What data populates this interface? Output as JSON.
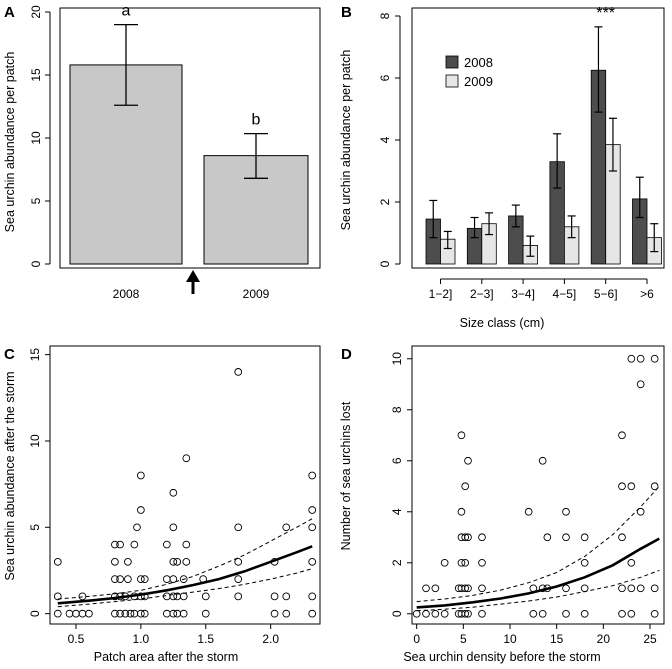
{
  "chart_data": [
    {
      "panel": "A",
      "type": "bar",
      "categories": [
        "2008",
        "2009"
      ],
      "values": [
        15.8,
        8.6
      ],
      "error_low": [
        12.6,
        6.8
      ],
      "error_high": [
        19.0,
        10.35
      ],
      "significance": [
        "a",
        "b"
      ],
      "ylabel": "Sea urchin abundance per patch",
      "ylim": [
        0,
        20
      ],
      "yticks": [
        0,
        5,
        10,
        15,
        20
      ],
      "colors": {
        "bar": "#c8c8c8"
      },
      "annotation": "arrow between 2008 and 2009 marking the storm event"
    },
    {
      "panel": "B",
      "type": "bar",
      "categories": [
        "1−2]",
        "2−3]",
        "3−4]",
        "4−5]",
        "5−6]",
        ">6"
      ],
      "series": [
        {
          "name": "2008",
          "values": [
            1.45,
            1.15,
            1.55,
            3.3,
            6.25,
            2.1
          ],
          "error_low": [
            0.85,
            0.85,
            1.2,
            2.45,
            4.9,
            1.5
          ],
          "error_high": [
            2.05,
            1.5,
            1.9,
            4.2,
            7.65,
            2.8
          ],
          "color": "#4d4d4d"
        },
        {
          "name": "2009",
          "values": [
            0.8,
            1.3,
            0.6,
            1.2,
            3.85,
            0.85
          ],
          "error_low": [
            0.5,
            0.95,
            0.25,
            0.85,
            3.0,
            0.4
          ],
          "error_high": [
            1.05,
            1.65,
            0.9,
            1.55,
            4.7,
            1.3
          ],
          "color": "#e6e6e6"
        }
      ],
      "significance_label": "***",
      "significance_index": 4,
      "xlabel": "Size class (cm)",
      "ylabel": "Sea urchin abundance per patch",
      "ylim": [
        0,
        8
      ],
      "yticks": [
        0,
        2,
        4,
        6,
        8
      ],
      "legend": "top-left"
    },
    {
      "panel": "C",
      "type": "scatter",
      "xlabel": "Patch area after the storm",
      "ylabel": "Sea urchin abundance after the storm",
      "xlim": [
        0.3,
        2.38
      ],
      "ylim": [
        -0.6,
        15.5
      ],
      "xticks": [
        0.5,
        1.0,
        1.5,
        2.0
      ],
      "xtick_labels": [
        "0.5",
        "1.0",
        "1.5",
        "2.0"
      ],
      "yticks": [
        0,
        5,
        10,
        15
      ],
      "points": [
        [
          0.36,
          3
        ],
        [
          0.36,
          1
        ],
        [
          0.36,
          0
        ],
        [
          0.45,
          0
        ],
        [
          0.5,
          0
        ],
        [
          0.55,
          1
        ],
        [
          0.55,
          0
        ],
        [
          0.6,
          0
        ],
        [
          0.8,
          4
        ],
        [
          0.8,
          3
        ],
        [
          0.8,
          2
        ],
        [
          0.8,
          1
        ],
        [
          0.8,
          0
        ],
        [
          0.84,
          4
        ],
        [
          0.84,
          2
        ],
        [
          0.84,
          1
        ],
        [
          0.84,
          0
        ],
        [
          0.88,
          0
        ],
        [
          0.88,
          1
        ],
        [
          0.9,
          3
        ],
        [
          0.9,
          2
        ],
        [
          0.92,
          0
        ],
        [
          0.95,
          4
        ],
        [
          0.95,
          1
        ],
        [
          0.95,
          0
        ],
        [
          0.97,
          5
        ],
        [
          1.0,
          8
        ],
        [
          1.0,
          6
        ],
        [
          1.0,
          2
        ],
        [
          1.0,
          1
        ],
        [
          1.0,
          0
        ],
        [
          1.03,
          2
        ],
        [
          1.03,
          1
        ],
        [
          1.03,
          0
        ],
        [
          1.2,
          4
        ],
        [
          1.2,
          2
        ],
        [
          1.2,
          1
        ],
        [
          1.2,
          0
        ],
        [
          1.25,
          7
        ],
        [
          1.25,
          5
        ],
        [
          1.25,
          3
        ],
        [
          1.25,
          2
        ],
        [
          1.25,
          1
        ],
        [
          1.25,
          0
        ],
        [
          1.28,
          3
        ],
        [
          1.28,
          1
        ],
        [
          1.28,
          0
        ],
        [
          1.33,
          2
        ],
        [
          1.33,
          1
        ],
        [
          1.33,
          0
        ],
        [
          1.35,
          9
        ],
        [
          1.35,
          4
        ],
        [
          1.35,
          3
        ],
        [
          1.48,
          2
        ],
        [
          1.5,
          1
        ],
        [
          1.5,
          0
        ],
        [
          1.75,
          14
        ],
        [
          1.75,
          5
        ],
        [
          1.75,
          3
        ],
        [
          1.75,
          2
        ],
        [
          1.75,
          1
        ],
        [
          2.03,
          3
        ],
        [
          2.03,
          1
        ],
        [
          2.03,
          0
        ],
        [
          2.12,
          5
        ],
        [
          2.12,
          1
        ],
        [
          2.12,
          0
        ],
        [
          2.32,
          8
        ],
        [
          2.32,
          6
        ],
        [
          2.32,
          5
        ],
        [
          2.32,
          3
        ],
        [
          2.32,
          1
        ],
        [
          2.32,
          0
        ]
      ],
      "fit": {
        "x": [
          0.36,
          0.6,
          0.8,
          1.0,
          1.2,
          1.4,
          1.6,
          1.8,
          2.0,
          2.2,
          2.32
        ],
        "y": [
          0.6,
          0.75,
          0.9,
          1.1,
          1.35,
          1.65,
          2.0,
          2.45,
          3.0,
          3.55,
          3.9
        ]
      },
      "fit_lower": {
        "x": [
          0.36,
          0.6,
          0.8,
          1.0,
          1.2,
          1.4,
          1.6,
          1.8,
          2.0,
          2.2,
          2.32
        ],
        "y": [
          0.4,
          0.55,
          0.7,
          0.85,
          1.05,
          1.25,
          1.45,
          1.7,
          2.0,
          2.35,
          2.6
        ]
      },
      "fit_upper": {
        "x": [
          0.36,
          0.6,
          0.8,
          1.0,
          1.2,
          1.4,
          1.6,
          1.8,
          2.0,
          2.2,
          2.32
        ],
        "y": [
          0.85,
          1.0,
          1.15,
          1.35,
          1.7,
          2.15,
          2.75,
          3.4,
          4.2,
          5.0,
          5.5
        ]
      }
    },
    {
      "panel": "D",
      "type": "scatter",
      "xlabel": "Sea urchin density before the storm",
      "ylabel": "Number of sea urchins lost",
      "xlim": [
        -0.5,
        26.5
      ],
      "ylim": [
        -0.4,
        10.5
      ],
      "xticks": [
        0,
        5,
        10,
        15,
        20,
        25
      ],
      "yticks": [
        0,
        2,
        4,
        6,
        8,
        10
      ],
      "points": [
        [
          0,
          0
        ],
        [
          1,
          0
        ],
        [
          1,
          1
        ],
        [
          2,
          1
        ],
        [
          2,
          0
        ],
        [
          3,
          0
        ],
        [
          3,
          2
        ],
        [
          4.5,
          1
        ],
        [
          4.5,
          0
        ],
        [
          4.8,
          7
        ],
        [
          4.8,
          4
        ],
        [
          4.8,
          3
        ],
        [
          4.8,
          2
        ],
        [
          4.8,
          1
        ],
        [
          4.8,
          0
        ],
        [
          5.2,
          5
        ],
        [
          5.2,
          3
        ],
        [
          5.2,
          2
        ],
        [
          5.2,
          1
        ],
        [
          5.2,
          0
        ],
        [
          5.5,
          6
        ],
        [
          5.5,
          3
        ],
        [
          5.5,
          1
        ],
        [
          5.5,
          0
        ],
        [
          7,
          3
        ],
        [
          7,
          2
        ],
        [
          7,
          1
        ],
        [
          7,
          0
        ],
        [
          12,
          4
        ],
        [
          12.5,
          1
        ],
        [
          12.5,
          0
        ],
        [
          13.5,
          6
        ],
        [
          13.5,
          1
        ],
        [
          13.5,
          0
        ],
        [
          14,
          3
        ],
        [
          14,
          1
        ],
        [
          16,
          4
        ],
        [
          16,
          3
        ],
        [
          16,
          1
        ],
        [
          16,
          0
        ],
        [
          18,
          3
        ],
        [
          18,
          2
        ],
        [
          18,
          1
        ],
        [
          18,
          0
        ],
        [
          22,
          7
        ],
        [
          22,
          5
        ],
        [
          22,
          3
        ],
        [
          22,
          1
        ],
        [
          22,
          0
        ],
        [
          23,
          10
        ],
        [
          23,
          5
        ],
        [
          23,
          2
        ],
        [
          23,
          1
        ],
        [
          23,
          0
        ],
        [
          24,
          10
        ],
        [
          24,
          9
        ],
        [
          24,
          4
        ],
        [
          24,
          1
        ],
        [
          25.5,
          10
        ],
        [
          25.5,
          5
        ],
        [
          25.5,
          1
        ],
        [
          25.5,
          0
        ]
      ],
      "fit": {
        "x": [
          0,
          3,
          6,
          9,
          12,
          15,
          18,
          21,
          24,
          26
        ],
        "y": [
          0.25,
          0.33,
          0.45,
          0.6,
          0.8,
          1.07,
          1.43,
          1.9,
          2.55,
          2.95
        ]
      },
      "fit_lower": {
        "x": [
          0,
          3,
          6,
          9,
          12,
          15,
          18,
          21,
          24,
          26
        ],
        "y": [
          0.12,
          0.18,
          0.26,
          0.38,
          0.5,
          0.66,
          0.87,
          1.1,
          1.43,
          1.7
        ]
      },
      "fit_upper": {
        "x": [
          0,
          3,
          6,
          9,
          12,
          15,
          18,
          21,
          24,
          26
        ],
        "y": [
          0.48,
          0.58,
          0.72,
          0.93,
          1.22,
          1.62,
          2.25,
          3.1,
          4.2,
          5.0
        ]
      }
    }
  ]
}
